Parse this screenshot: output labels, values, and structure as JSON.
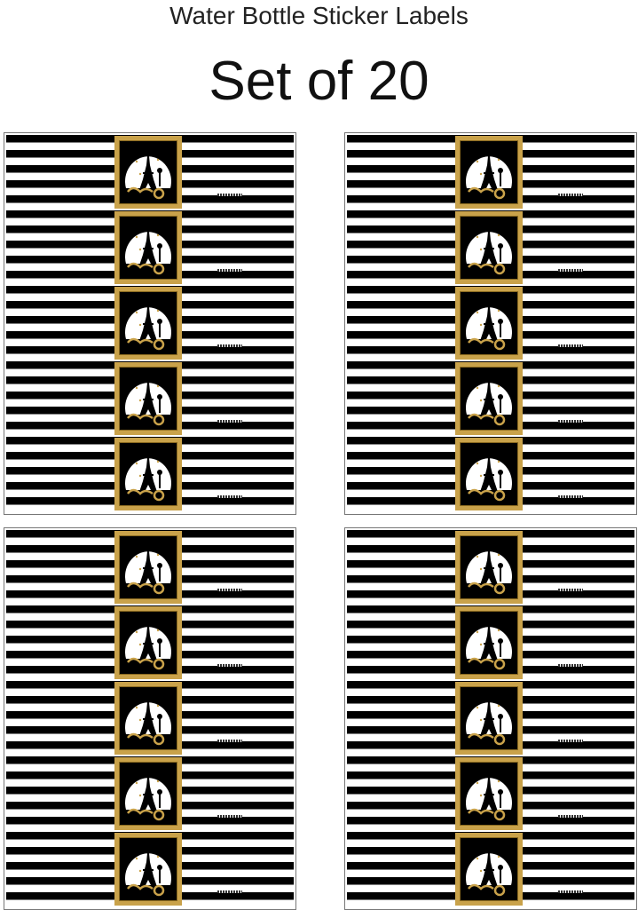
{
  "header": {
    "subtitle": "Water Bottle Sticker Labels",
    "title": "Set of 20"
  },
  "sheets": [
    {
      "labels": 5
    },
    {
      "labels": 5
    },
    {
      "labels": 5
    },
    {
      "labels": 5
    }
  ],
  "colors": {
    "stripe_dark": "#000000",
    "stripe_light": "#ffffff",
    "gold": "#c9a24a"
  },
  "icons": {
    "badge": "eiffel-tower-moon-icon"
  }
}
